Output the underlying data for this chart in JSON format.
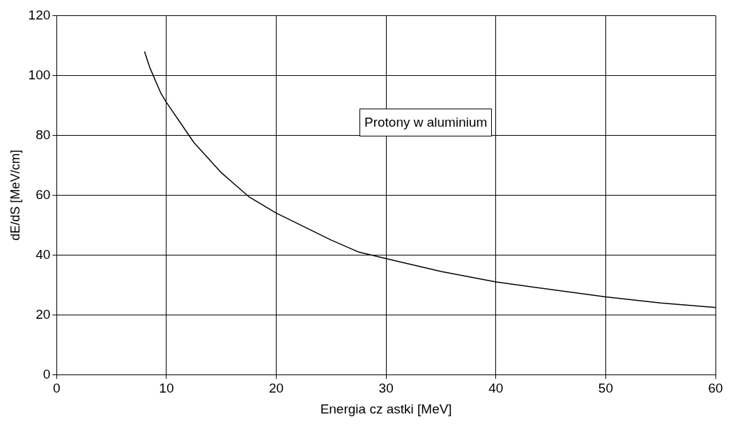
{
  "chart_data": {
    "type": "line",
    "xlabel": "Energia cz astki [MeV]",
    "ylabel": "dE/dS [MeV/cm]",
    "annotations": [
      "Protony w aluminium"
    ],
    "x": [
      8,
      8.5,
      9.5,
      10,
      12.5,
      15,
      17.5,
      20,
      25,
      27.5,
      30,
      35,
      40,
      50,
      55,
      60
    ],
    "series": [
      {
        "color": "#000000",
        "values": [
          108,
          102.5,
          94,
          91,
          77.6,
          67.5,
          59.5,
          54,
          45,
          41,
          38.8,
          34.5,
          31,
          26,
          24,
          22.5
        ]
      }
    ],
    "xlim": [
      0,
      60
    ],
    "xticks": [
      0,
      10,
      20,
      30,
      40,
      50,
      60
    ],
    "ylim": [
      0,
      120
    ],
    "yticks": [
      0,
      20,
      40,
      60,
      80,
      100,
      120
    ],
    "grid": true,
    "legend": false,
    "marker": "none",
    "line_style": "solid"
  }
}
